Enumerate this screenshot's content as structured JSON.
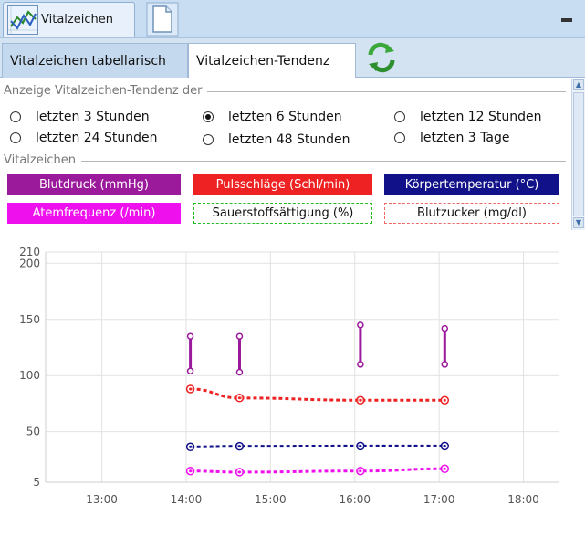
{
  "window": {
    "title": "Vitalzeichen",
    "icon": "chart-line-icon",
    "doc_icon": "document-icon",
    "minimize_icon": "minimize-icon"
  },
  "tabs": [
    {
      "label": "Vitalzeichen tabellarisch",
      "active": false
    },
    {
      "label": "Vitalzeichen-Tendenz",
      "active": true
    }
  ],
  "refresh_icon": "refresh-arrows-icon",
  "range_section": {
    "label": "Anzeige Vitalzeichen-Tendenz der",
    "options": [
      {
        "label": "letzten 3 Stunden",
        "selected": false
      },
      {
        "label": "letzten 6 Stunden",
        "selected": true
      },
      {
        "label": "letzten 12 Stunden",
        "selected": false
      },
      {
        "label": "letzten 24 Stunden",
        "selected": false
      },
      {
        "label": "letzten 48 Stunden",
        "selected": false
      },
      {
        "label": "letzten 3 Tage",
        "selected": false
      }
    ]
  },
  "vitals_section": {
    "label": "Vitalzeichen",
    "buttons": [
      {
        "label": "Blutdruck (mmHg)",
        "color": "#9b1a9b",
        "style": "filled"
      },
      {
        "label": "Pulsschläge (Schl/min)",
        "color": "#ee2222",
        "style": "filled"
      },
      {
        "label": "Körpertemperatur (°C)",
        "color": "#11118a",
        "style": "filled"
      },
      {
        "label": "Atemfrequenz (/min)",
        "color": "#ee11ee",
        "style": "filled"
      },
      {
        "label": "Sauerstoffsättigung (%)",
        "color": "#22bb22",
        "style": "dashed"
      },
      {
        "label": "Blutzucker (mg/dl)",
        "color": "#ee6666",
        "style": "dashed"
      }
    ]
  },
  "chart_data": {
    "type": "line",
    "x_unit": "time",
    "xlim": [
      "12:20",
      "18:25"
    ],
    "x_ticks": [
      "13:00",
      "14:00",
      "15:00",
      "16:00",
      "17:00",
      "18:00"
    ],
    "ylim": [
      0,
      210
    ],
    "y_ticks": [
      5,
      50,
      100,
      150,
      200,
      210
    ],
    "grid": true,
    "series": [
      {
        "name": "Blutdruck (mmHg)",
        "kind": "range",
        "color": "#9b1a9b",
        "points": [
          {
            "x": "14:03",
            "low": 104,
            "high": 135
          },
          {
            "x": "14:38",
            "low": 103,
            "high": 135
          },
          {
            "x": "16:04",
            "low": 110,
            "high": 145
          },
          {
            "x": "17:04",
            "low": 110,
            "high": 142
          }
        ]
      },
      {
        "name": "Pulsschläge (Schl/min)",
        "kind": "line",
        "color": "#ee2222",
        "points": [
          {
            "x": "14:03",
            "y": 88
          },
          {
            "x": "14:38",
            "y": 80
          },
          {
            "x": "16:04",
            "y": 78
          },
          {
            "x": "17:04",
            "y": 78
          }
        ]
      },
      {
        "name": "Körpertemperatur (°C)",
        "kind": "line",
        "color": "#11118a",
        "points": [
          {
            "x": "14:03",
            "y": 36.5
          },
          {
            "x": "14:38",
            "y": 37
          },
          {
            "x": "16:04",
            "y": 37.2
          },
          {
            "x": "17:04",
            "y": 37.2
          }
        ]
      },
      {
        "name": "Atemfrequenz (/min)",
        "kind": "line",
        "color": "#ee11ee",
        "points": [
          {
            "x": "14:03",
            "y": 15
          },
          {
            "x": "14:38",
            "y": 14
          },
          {
            "x": "16:04",
            "y": 15
          },
          {
            "x": "17:04",
            "y": 17
          }
        ]
      }
    ]
  }
}
